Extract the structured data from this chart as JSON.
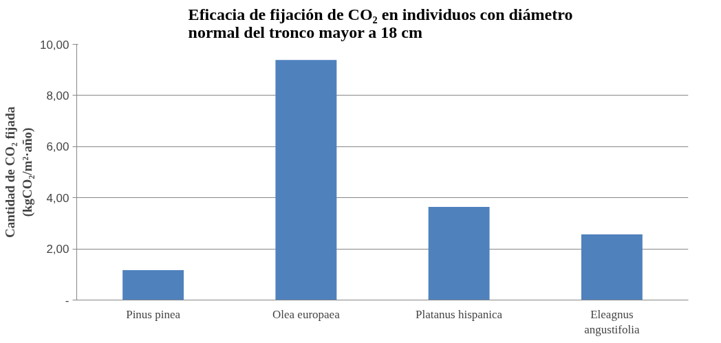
{
  "chart_data": {
    "type": "bar",
    "title": "Eficacia  de fijación de CO₂ en individuos con diámetro\nnormal del tronco mayor a 18 cm",
    "ylabel": "Cantidad de CO₂ fijada\n(kgCO₂/m²·año)",
    "categories": [
      "Pinus pinea",
      "Olea europaea",
      "Platanus hispanica",
      "Eleagnus angustifolia"
    ],
    "values": [
      1.17,
      9.39,
      3.64,
      2.57
    ],
    "color": "#4f81bd",
    "ylim": [
      0,
      10
    ],
    "yticks": [
      {
        "value": 0,
        "label": "-"
      },
      {
        "value": 2,
        "label": "2,00"
      },
      {
        "value": 4,
        "label": "4,00"
      },
      {
        "value": 6,
        "label": "6,00"
      },
      {
        "value": 8,
        "label": "8,00"
      },
      {
        "value": 10,
        "label": "10,00"
      }
    ],
    "grid": "y"
  }
}
